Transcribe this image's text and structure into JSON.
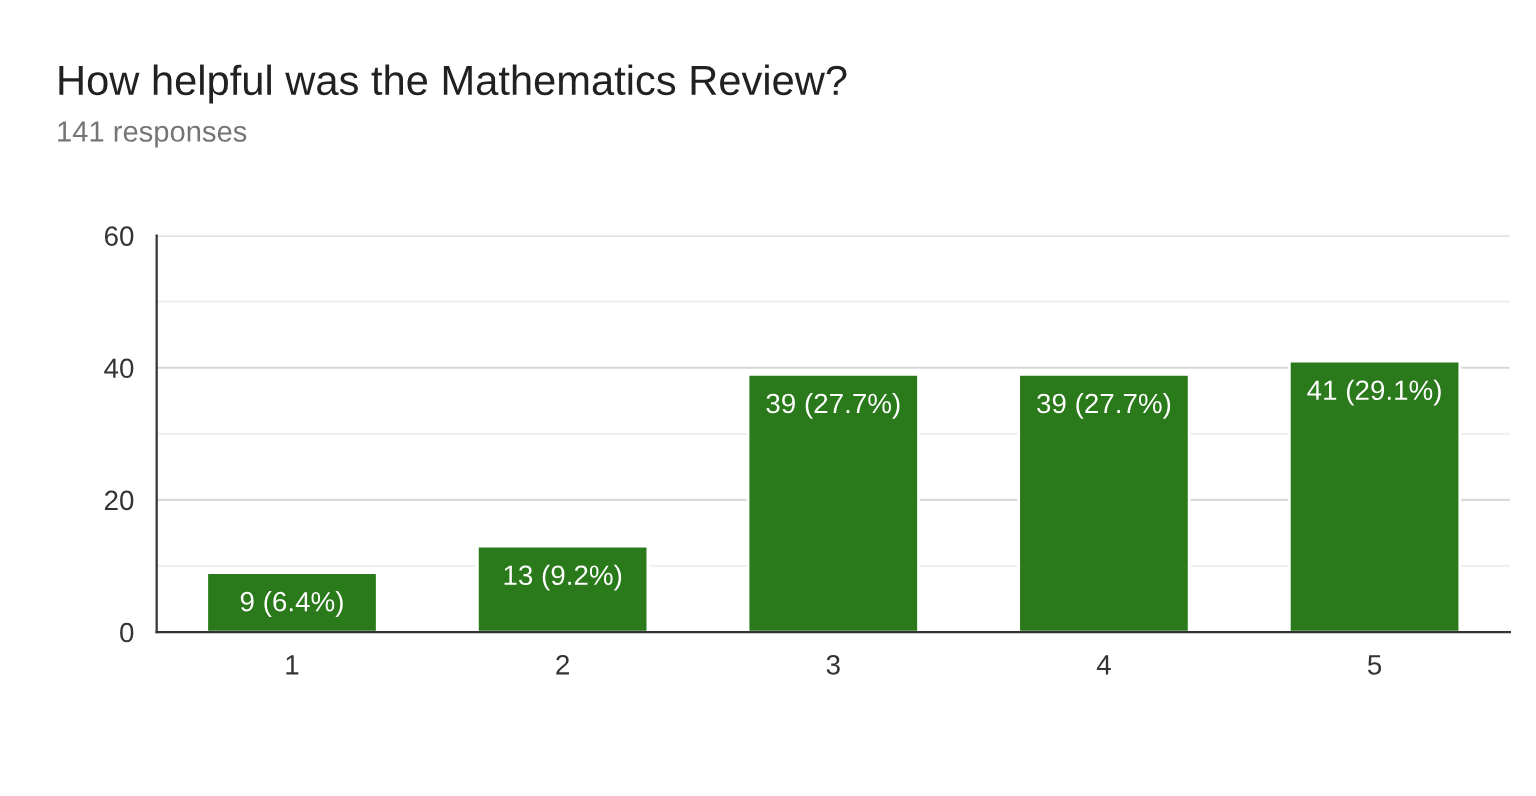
{
  "chart_data": {
    "type": "bar",
    "title": "How helpful was the Mathematics Review?",
    "subtitle": "141 responses",
    "categories": [
      "1",
      "2",
      "3",
      "4",
      "5"
    ],
    "values": [
      9,
      13,
      39,
      39,
      41
    ],
    "value_labels": [
      "9 (6.4%)",
      "13 (9.2%)",
      "39 (27.7%)",
      "39 (27.7%)",
      "41 (29.1%)"
    ],
    "color": "#2a7a1b",
    "ylim": [
      0,
      60
    ],
    "yticks": [
      0,
      {
        "value": 10,
        "label": null
      },
      20,
      {
        "value": 30,
        "label": null
      },
      40,
      {
        "value": 50,
        "label": null
      },
      60
    ],
    "grid": "y"
  }
}
